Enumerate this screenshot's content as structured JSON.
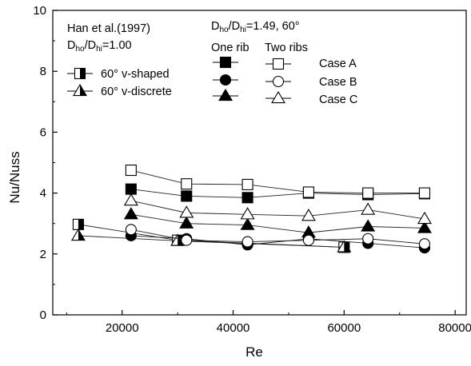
{
  "chart_data": {
    "type": "line",
    "xlabel": "Re",
    "ylabel": "Nu/Nuss",
    "xlim": [
      7500,
      82000
    ],
    "ylim": [
      0,
      10
    ],
    "xticks": [
      20000,
      40000,
      60000,
      80000
    ],
    "yticks": [
      0,
      2,
      4,
      6,
      8,
      10
    ],
    "xtick_labels": [
      "20000",
      "40000",
      "60000",
      "80000"
    ],
    "ytick_labels": [
      "0",
      "2",
      "4",
      "6",
      "8",
      "10"
    ],
    "grid": false,
    "legend": {
      "han_title": "Han et al.(1997)",
      "han_ratio_main": "D",
      "han_ratio_sub1": "ho",
      "han_ratio_mid": "/D",
      "han_ratio_sub2": "hi",
      "han_ratio_val": "=1.00",
      "present_main": "D",
      "present_sub1": "ho",
      "present_mid": "/D",
      "present_sub2": "hi",
      "present_val": "=1.49,  60°",
      "one_rib": "One rib",
      "two_ribs": "Two ribs"
    },
    "series": [
      {
        "name": "60° v-shaped",
        "marker": "half-square",
        "x": [
          12100,
          30000,
          60000
        ],
        "y": [
          2.97,
          2.45,
          2.22
        ]
      },
      {
        "name": "60° v-discrete",
        "marker": "half-triangle",
        "x": [
          12100,
          30000,
          60000
        ],
        "y": [
          2.6,
          2.43,
          2.22
        ]
      },
      {
        "name": "Case A",
        "marker": "filled-square",
        "x": [
          21600,
          31600,
          42600,
          53600,
          64300,
          74500
        ],
        "y": [
          4.13,
          3.9,
          3.85,
          4.0,
          3.95,
          3.98
        ]
      },
      {
        "name": "Case B",
        "marker": "filled-circle",
        "x": [
          21600,
          31600,
          42600,
          53600,
          64300,
          74500
        ],
        "y": [
          2.6,
          2.5,
          2.3,
          2.5,
          2.35,
          2.2
        ]
      },
      {
        "name": "Case C",
        "marker": "filled-triangle",
        "x": [
          21600,
          31600,
          42600,
          53600,
          64300,
          74500
        ],
        "y": [
          3.3,
          3.0,
          2.95,
          2.7,
          2.9,
          2.85
        ]
      },
      {
        "name": "Case A",
        "marker": "open-square",
        "x": [
          21600,
          31600,
          42600,
          53600,
          64300,
          74500
        ],
        "y": [
          4.75,
          4.3,
          4.28,
          4.03,
          4.0,
          4.0
        ]
      },
      {
        "name": "Case B",
        "marker": "open-circle",
        "x": [
          21600,
          31600,
          42600,
          53600,
          64300,
          74500
        ],
        "y": [
          2.8,
          2.45,
          2.4,
          2.45,
          2.5,
          2.33
        ]
      },
      {
        "name": "Case C",
        "marker": "open-triangle",
        "x": [
          21600,
          31600,
          42600,
          53600,
          64300,
          74500
        ],
        "y": [
          3.75,
          3.35,
          3.3,
          3.25,
          3.45,
          3.15
        ]
      }
    ]
  }
}
